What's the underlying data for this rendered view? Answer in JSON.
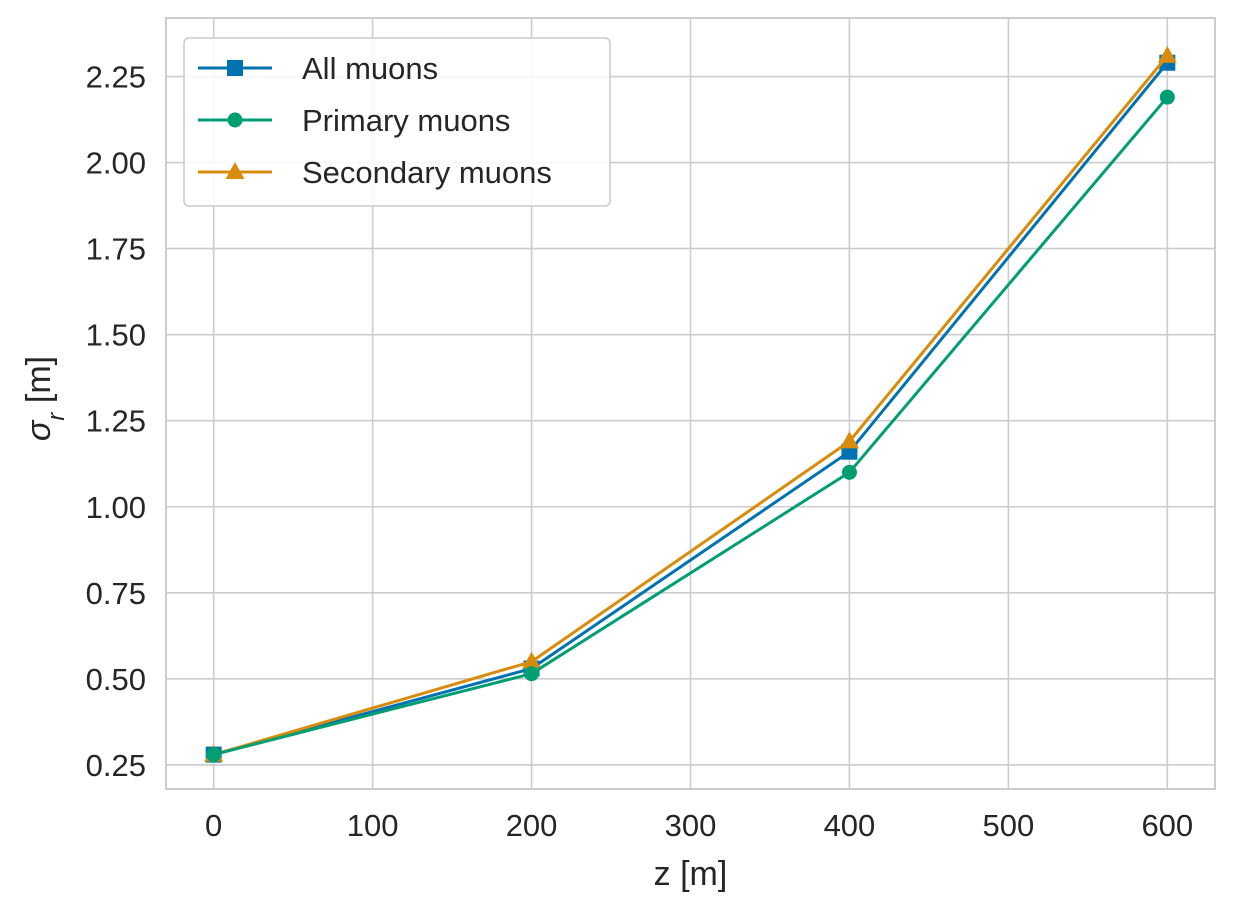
{
  "chart_data": {
    "type": "line",
    "title": "",
    "xlabel": "z [m]",
    "ylabel": "σ_r [m]",
    "xlim": [
      -30,
      630
    ],
    "ylim": [
      0.18,
      2.42
    ],
    "xticks": [
      0,
      100,
      200,
      300,
      400,
      500,
      600
    ],
    "xtick_labels": [
      "0",
      "100",
      "200",
      "300",
      "400",
      "500",
      "600"
    ],
    "yticks": [
      0.25,
      0.5,
      0.75,
      1.0,
      1.25,
      1.5,
      1.75,
      2.0,
      2.25
    ],
    "ytick_labels": [
      "0.25",
      "0.50",
      "0.75",
      "1.00",
      "1.25",
      "1.50",
      "1.75",
      "2.00",
      "2.25"
    ],
    "grid": true,
    "legend_position": "top-left",
    "x": [
      0,
      200,
      400,
      600
    ],
    "series": [
      {
        "name": "All muons",
        "values": [
          0.28,
          0.53,
          1.16,
          2.29
        ],
        "color": "#0072B2",
        "marker": "square"
      },
      {
        "name": "Primary muons",
        "values": [
          0.28,
          0.515,
          1.1,
          2.19
        ],
        "color": "#009E73",
        "marker": "circle"
      },
      {
        "name": "Secondary muons",
        "values": [
          0.28,
          0.55,
          1.19,
          2.31
        ],
        "color": "#D98C0B",
        "marker": "triangle"
      }
    ]
  }
}
